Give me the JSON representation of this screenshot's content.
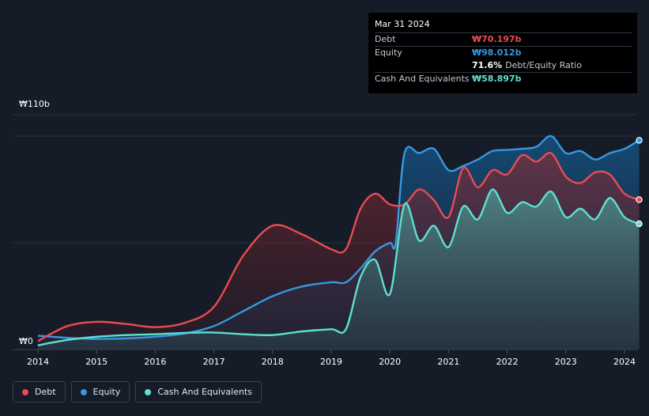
{
  "tooltip": {
    "date": "Mar 31 2024",
    "rows": [
      {
        "label": "Debt",
        "value": "₩70.197b",
        "color": "#e94b51"
      },
      {
        "label": "Equity",
        "value": "₩98.012b",
        "color": "#3698e0"
      },
      {
        "label": "",
        "value": "71.6%",
        "extra": "Debt/Equity Ratio",
        "color": "#ffffff"
      },
      {
        "label": "Cash And Equivalents",
        "value": "₩58.897b",
        "color": "#5ee0cd"
      }
    ]
  },
  "legend": [
    {
      "label": "Debt",
      "color": "#e94b51"
    },
    {
      "label": "Equity",
      "color": "#3698e0"
    },
    {
      "label": "Cash And Equivalents",
      "color": "#5ee0cd"
    }
  ],
  "chart_data": {
    "type": "area",
    "y_tick_labels": [
      "₩110b",
      "₩0"
    ],
    "ylim": [
      0,
      110
    ],
    "xlim": [
      2013.97,
      2024.25
    ],
    "x_ticks": [
      2014,
      2015,
      2016,
      2017,
      2018,
      2019,
      2020,
      2021,
      2022,
      2023,
      2024
    ],
    "gridlines": [
      0,
      50,
      100,
      110
    ],
    "series": [
      {
        "name": "Equity",
        "color": "#3698e0",
        "points": [
          [
            2014.0,
            6.5
          ],
          [
            2014.5,
            5.5
          ],
          [
            2015.0,
            5.0
          ],
          [
            2015.5,
            5.2
          ],
          [
            2016.0,
            6.0
          ],
          [
            2016.5,
            7.5
          ],
          [
            2017.0,
            11.0
          ],
          [
            2017.5,
            18.0
          ],
          [
            2018.0,
            25.0
          ],
          [
            2018.5,
            29.5
          ],
          [
            2019.0,
            31.5
          ],
          [
            2019.25,
            31.5
          ],
          [
            2019.5,
            38.0
          ],
          [
            2019.75,
            46.0
          ],
          [
            2020.0,
            50.0
          ],
          [
            2020.1,
            50.0
          ],
          [
            2020.25,
            92.0
          ],
          [
            2020.5,
            92.0
          ],
          [
            2020.75,
            94.0
          ],
          [
            2021.0,
            84.0
          ],
          [
            2021.25,
            86.0
          ],
          [
            2021.5,
            89.0
          ],
          [
            2021.75,
            93.0
          ],
          [
            2022.0,
            93.5
          ],
          [
            2022.25,
            94.0
          ],
          [
            2022.5,
            95.0
          ],
          [
            2022.75,
            100.0
          ],
          [
            2023.0,
            92.0
          ],
          [
            2023.25,
            93.0
          ],
          [
            2023.5,
            89.0
          ],
          [
            2023.75,
            92.0
          ],
          [
            2024.0,
            94.0
          ],
          [
            2024.25,
            98.0
          ]
        ]
      },
      {
        "name": "Debt",
        "color": "#e94b51",
        "points": [
          [
            2014.0,
            4.0
          ],
          [
            2014.5,
            11.0
          ],
          [
            2015.0,
            13.0
          ],
          [
            2015.5,
            12.0
          ],
          [
            2016.0,
            10.5
          ],
          [
            2016.5,
            12.5
          ],
          [
            2017.0,
            20.0
          ],
          [
            2017.5,
            44.0
          ],
          [
            2018.0,
            58.0
          ],
          [
            2018.5,
            54.0
          ],
          [
            2019.0,
            47.0
          ],
          [
            2019.25,
            47.0
          ],
          [
            2019.5,
            66.0
          ],
          [
            2019.75,
            73.0
          ],
          [
            2020.0,
            68.0
          ],
          [
            2020.25,
            68.0
          ],
          [
            2020.5,
            75.0
          ],
          [
            2020.75,
            70.0
          ],
          [
            2021.0,
            62.0
          ],
          [
            2021.25,
            85.0
          ],
          [
            2021.5,
            76.0
          ],
          [
            2021.75,
            84.0
          ],
          [
            2022.0,
            82.0
          ],
          [
            2022.25,
            91.0
          ],
          [
            2022.5,
            88.0
          ],
          [
            2022.75,
            92.0
          ],
          [
            2023.0,
            81.0
          ],
          [
            2023.25,
            78.0
          ],
          [
            2023.5,
            83.0
          ],
          [
            2023.75,
            82.0
          ],
          [
            2024.0,
            73.0
          ],
          [
            2024.25,
            70.2
          ]
        ]
      },
      {
        "name": "Cash And Equivalents",
        "color": "#5ee0cd",
        "points": [
          [
            2014.0,
            2.0
          ],
          [
            2014.5,
            4.5
          ],
          [
            2015.0,
            6.0
          ],
          [
            2015.5,
            6.8
          ],
          [
            2016.0,
            7.2
          ],
          [
            2016.5,
            7.8
          ],
          [
            2017.0,
            8.0
          ],
          [
            2017.5,
            7.2
          ],
          [
            2018.0,
            6.8
          ],
          [
            2018.5,
            8.5
          ],
          [
            2019.0,
            9.5
          ],
          [
            2019.25,
            9.5
          ],
          [
            2019.5,
            34.0
          ],
          [
            2019.75,
            42.0
          ],
          [
            2020.0,
            26.0
          ],
          [
            2020.25,
            68.0
          ],
          [
            2020.5,
            51.0
          ],
          [
            2020.75,
            58.0
          ],
          [
            2021.0,
            48.0
          ],
          [
            2021.25,
            67.0
          ],
          [
            2021.5,
            61.0
          ],
          [
            2021.75,
            75.0
          ],
          [
            2022.0,
            64.0
          ],
          [
            2022.25,
            69.0
          ],
          [
            2022.5,
            67.0
          ],
          [
            2022.75,
            74.0
          ],
          [
            2023.0,
            62.0
          ],
          [
            2023.25,
            66.0
          ],
          [
            2023.5,
            61.0
          ],
          [
            2023.75,
            71.0
          ],
          [
            2024.0,
            62.0
          ],
          [
            2024.25,
            58.9
          ]
        ]
      }
    ]
  }
}
